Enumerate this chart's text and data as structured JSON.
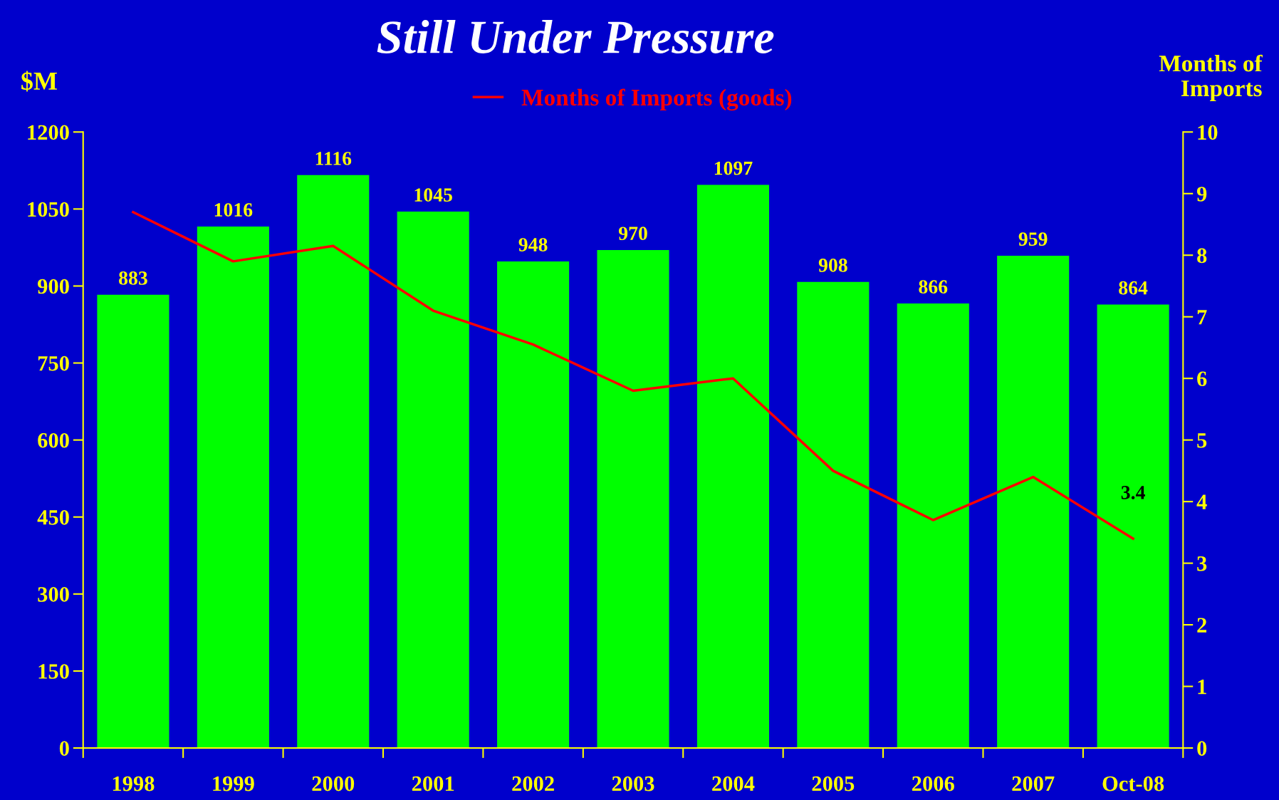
{
  "chart_data": {
    "type": "bar",
    "title": "Still Under Pressure",
    "ylabel": "$M",
    "y2label": "Months of\nImports",
    "categories": [
      "1998",
      "1999",
      "2000",
      "2001",
      "2002",
      "2003",
      "2004",
      "2005",
      "2006",
      "2007",
      "Oct-08"
    ],
    "series": [
      {
        "color": "#00ff00",
        "values": [
          883,
          1016,
          1116,
          1045,
          948,
          970,
          1097,
          908,
          866,
          959,
          864
        ]
      },
      {
        "type": "line",
        "axis": "y2",
        "name": "Months of Imports (goods)",
        "color": "#ff0000",
        "values": [
          8.7,
          7.9,
          8.15,
          7.1,
          6.55,
          5.8,
          6.0,
          4.5,
          3.7,
          4.4,
          3.4
        ],
        "value_labels": [
          null,
          null,
          null,
          null,
          null,
          null,
          null,
          null,
          null,
          null,
          "3.4"
        ]
      }
    ],
    "data_labels": true,
    "ylim": [
      0,
      1200
    ],
    "yticks": [
      0,
      150,
      300,
      450,
      600,
      750,
      900,
      1050,
      1200
    ],
    "y2lim": [
      0,
      10
    ],
    "y2ticks": [
      0,
      1,
      2,
      3,
      4,
      5,
      6,
      7,
      8,
      9,
      10
    ],
    "grid": false,
    "legend": "top",
    "marker": "none",
    "line_style": "solid"
  }
}
